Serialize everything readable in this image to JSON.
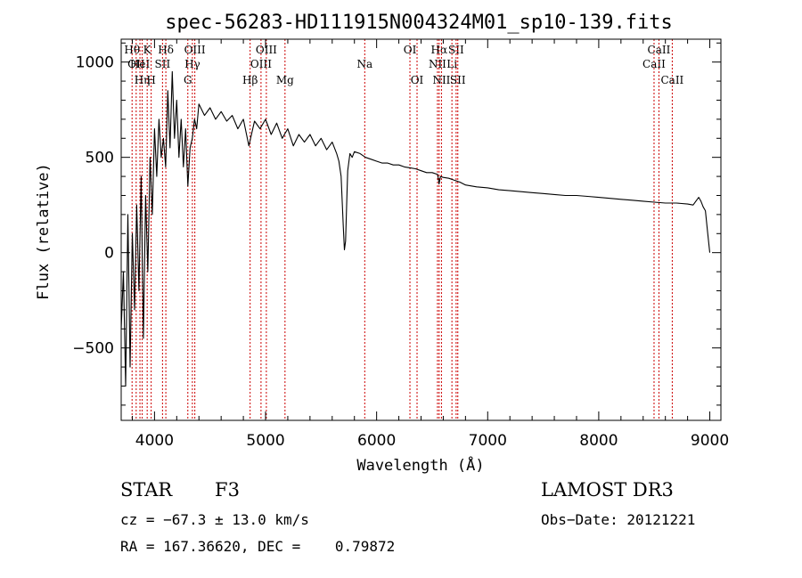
{
  "chart_data": {
    "type": "line",
    "title": "spec-56283-HD111915N004324M01_sp10-139.fits",
    "xlabel": "Wavelength (Å)",
    "ylabel": "Flux (relative)",
    "xlim": [
      3700,
      9100
    ],
    "ylim": [
      -880,
      1120
    ],
    "xticks": [
      4000,
      5000,
      6000,
      7000,
      8000,
      9000
    ],
    "xtick_labels": [
      "4000",
      "5000",
      "6000",
      "7000",
      "8000",
      "9000"
    ],
    "yticks": [
      -500,
      0,
      500,
      1000
    ],
    "ytick_labels": [
      "−500",
      "0",
      "500",
      "1000"
    ],
    "series": [
      {
        "name": "flux",
        "x": [
          3700,
          3720,
          3740,
          3760,
          3780,
          3800,
          3820,
          3840,
          3860,
          3880,
          3900,
          3920,
          3940,
          3960,
          3980,
          4000,
          4020,
          4040,
          4060,
          4080,
          4100,
          4120,
          4140,
          4160,
          4180,
          4200,
          4220,
          4240,
          4260,
          4280,
          4300,
          4320,
          4340,
          4360,
          4380,
          4400,
          4450,
          4500,
          4550,
          4600,
          4650,
          4700,
          4750,
          4800,
          4850,
          4900,
          4950,
          5000,
          5050,
          5100,
          5150,
          5200,
          5250,
          5300,
          5350,
          5400,
          5450,
          5500,
          5550,
          5600,
          5640,
          5660,
          5680,
          5700,
          5710,
          5720,
          5730,
          5740,
          5760,
          5780,
          5800,
          5850,
          5900,
          5950,
          6000,
          6050,
          6100,
          6150,
          6200,
          6250,
          6300,
          6350,
          6400,
          6450,
          6500,
          6550,
          6562,
          6575,
          6600,
          6650,
          6700,
          6750,
          6800,
          6900,
          7000,
          7100,
          7200,
          7300,
          7400,
          7500,
          7600,
          7700,
          7800,
          7900,
          8000,
          8100,
          8200,
          8300,
          8400,
          8500,
          8600,
          8700,
          8800,
          8850,
          8900,
          8920,
          8940,
          8960,
          8980,
          9000
        ],
        "y": [
          -400,
          -100,
          -700,
          200,
          -600,
          100,
          -300,
          250,
          -200,
          400,
          -450,
          300,
          -100,
          500,
          200,
          650,
          400,
          700,
          500,
          600,
          450,
          850,
          550,
          950,
          600,
          800,
          500,
          700,
          450,
          650,
          350,
          550,
          600,
          700,
          650,
          780,
          720,
          760,
          700,
          740,
          690,
          720,
          650,
          700,
          560,
          690,
          650,
          700,
          620,
          680,
          600,
          650,
          560,
          620,
          580,
          620,
          560,
          600,
          540,
          580,
          520,
          480,
          400,
          130,
          15,
          60,
          250,
          430,
          520,
          500,
          530,
          520,
          500,
          490,
          480,
          470,
          470,
          460,
          460,
          450,
          445,
          440,
          430,
          420,
          420,
          410,
          360,
          400,
          395,
          390,
          380,
          370,
          355,
          345,
          340,
          330,
          325,
          320,
          315,
          310,
          305,
          300,
          300,
          295,
          290,
          285,
          280,
          275,
          270,
          265,
          260,
          260,
          255,
          250,
          290,
          270,
          240,
          220,
          110,
          0
        ]
      }
    ],
    "line_marks": [
      {
        "w": 3798,
        "label": "Hθ",
        "row": 1
      },
      {
        "w": 3835,
        "label": "OII",
        "row": 2
      },
      {
        "w": 3869,
        "label": "HeI",
        "row": 2
      },
      {
        "w": 3889,
        "label": "Hη",
        "row": 3
      },
      {
        "w": 3934,
        "label": "K",
        "row": 1
      },
      {
        "w": 3970,
        "label": "H",
        "row": 3
      },
      {
        "w": 4072,
        "label": "SII",
        "row": 2
      },
      {
        "w": 4102,
        "label": "Hδ",
        "row": 1
      },
      {
        "w": 4300,
        "label": "G",
        "row": 3
      },
      {
        "w": 4341,
        "label": "Hγ",
        "row": 2
      },
      {
        "w": 4363,
        "label": "OIII",
        "row": 1
      },
      {
        "w": 4861,
        "label": "Hβ",
        "row": 3
      },
      {
        "w": 4959,
        "label": "OIII",
        "row": 2
      },
      {
        "w": 5007,
        "label": "OIII",
        "row": 1
      },
      {
        "w": 5175,
        "label": "Mg",
        "row": 3
      },
      {
        "w": 5893,
        "label": "Na",
        "row": 2
      },
      {
        "w": 6300,
        "label": "OI",
        "row": 1
      },
      {
        "w": 6364,
        "label": "OI",
        "row": 3
      },
      {
        "w": 6548,
        "label": "NII",
        "row": 2
      },
      {
        "w": 6563,
        "label": "Hα",
        "row": 1
      },
      {
        "w": 6584,
        "label": "NII",
        "row": 3
      },
      {
        "w": 6678,
        "label": "Li",
        "row": 2
      },
      {
        "w": 6716,
        "label": "SII",
        "row": 1
      },
      {
        "w": 6731,
        "label": "SII",
        "row": 3
      },
      {
        "w": 8498,
        "label": "CaII",
        "row": 2
      },
      {
        "w": 8542,
        "label": "CaII",
        "row": 1
      },
      {
        "w": 8662,
        "label": "CaII",
        "row": 3
      }
    ]
  },
  "info": {
    "object_class": "STAR",
    "subclass": "F3",
    "survey": "LAMOST DR3",
    "cz": "cz = −67.3 ± 13.0 km/s",
    "obs_date": "Obs−Date: 20121221",
    "coords": "RA = 167.36620, DEC =    0.79872"
  },
  "colors": {
    "line_marker": "#cc0000",
    "spectrum": "#000000",
    "axes": "#000000"
  }
}
